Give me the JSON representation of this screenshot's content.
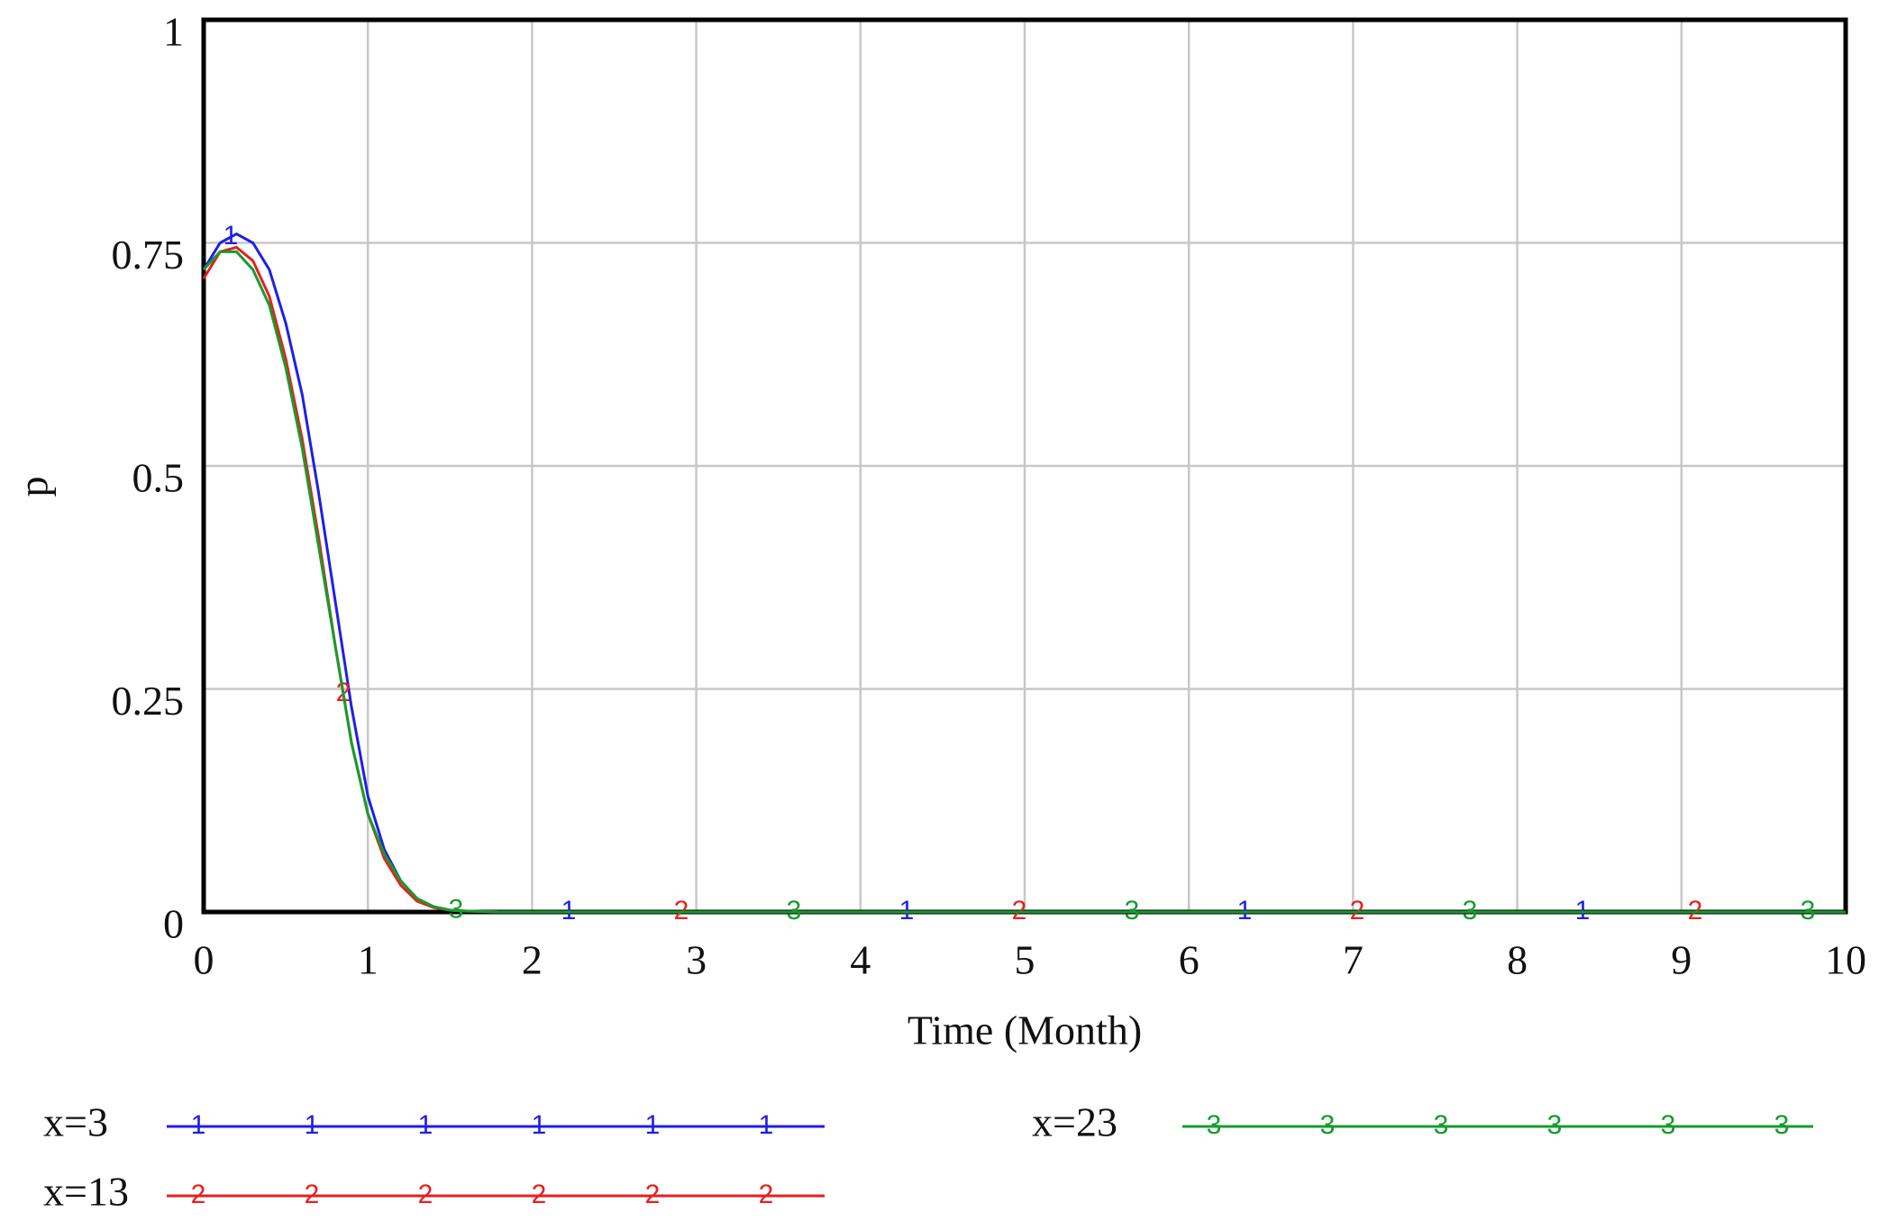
{
  "chart_data": {
    "type": "line",
    "x_label": "Time (Month)",
    "y_label": "p",
    "x": [
      0,
      0.1,
      0.2,
      0.3,
      0.4,
      0.5,
      0.6,
      0.7,
      0.8,
      0.9,
      1,
      1.1,
      1.2,
      1.3,
      1.4,
      1.5,
      1.6,
      1.8,
      2,
      3,
      4,
      5,
      6,
      7,
      8,
      9,
      10
    ],
    "series": [
      {
        "name": "x=3",
        "marker": "1",
        "color": "#1f1fe6",
        "values": [
          0.72,
          0.75,
          0.76,
          0.75,
          0.72,
          0.66,
          0.58,
          0.47,
          0.35,
          0.23,
          0.13,
          0.07,
          0.035,
          0.015,
          0.006,
          0.002,
          0.001,
          0,
          0,
          0,
          0,
          0,
          0,
          0,
          0,
          0,
          0
        ]
      },
      {
        "name": "x=13",
        "marker": "2",
        "color": "#e62020",
        "values": [
          0.71,
          0.74,
          0.745,
          0.73,
          0.69,
          0.62,
          0.53,
          0.42,
          0.3,
          0.19,
          0.11,
          0.06,
          0.03,
          0.012,
          0.005,
          0.002,
          0.001,
          0,
          0,
          0,
          0,
          0,
          0,
          0,
          0,
          0,
          0
        ]
      },
      {
        "name": "x=23",
        "marker": "3",
        "color": "#169c2c",
        "values": [
          0.72,
          0.74,
          0.74,
          0.72,
          0.68,
          0.61,
          0.52,
          0.41,
          0.3,
          0.19,
          0.11,
          0.065,
          0.035,
          0.015,
          0.006,
          0.002,
          0.001,
          0,
          0,
          0,
          0,
          0,
          0,
          0,
          0,
          0,
          0
        ]
      }
    ],
    "xlim": [
      0,
      10
    ],
    "xticks": [
      0,
      1,
      2,
      3,
      4,
      5,
      6,
      7,
      8,
      9,
      10
    ],
    "ylim": [
      0,
      1
    ],
    "yticks": [
      0,
      0.25,
      0.5,
      0.75,
      1
    ],
    "grid": true
  }
}
